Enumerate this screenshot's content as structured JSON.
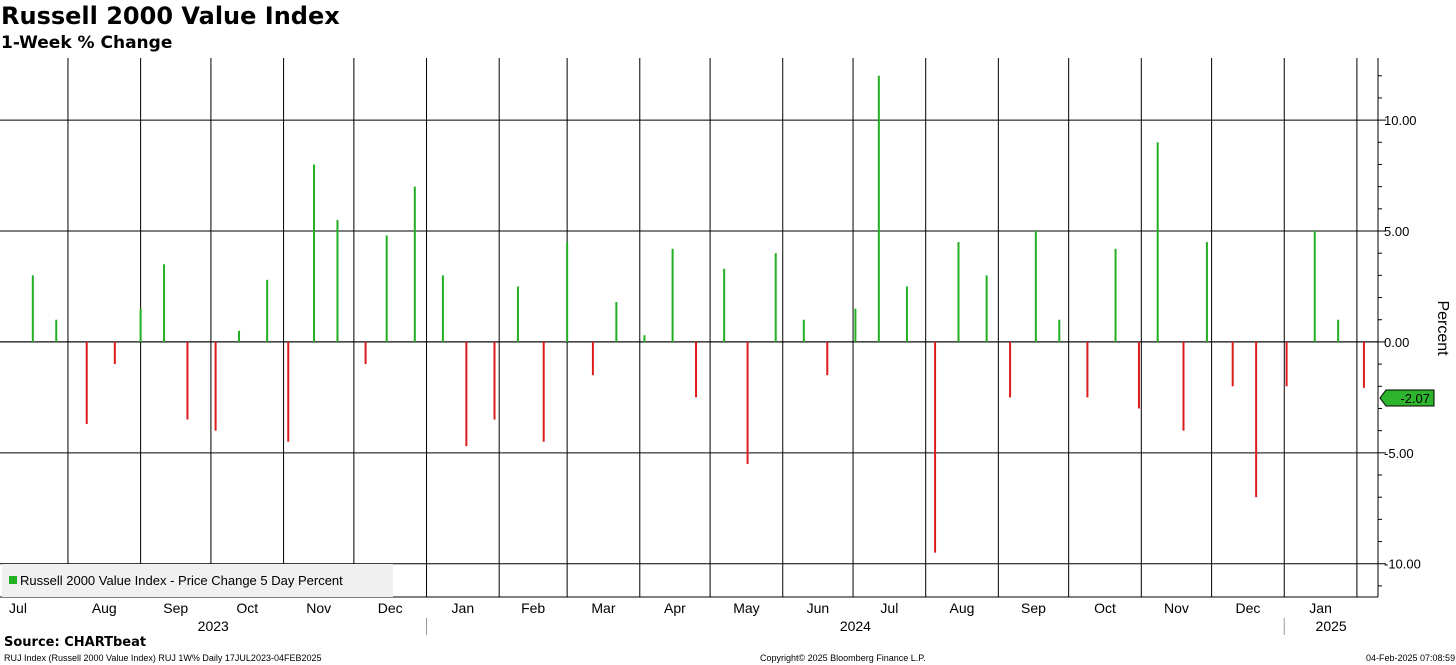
{
  "header": {
    "title": "Russell 2000 Value Index",
    "subtitle": "1-Week % Change"
  },
  "footer": {
    "source": "Source: CHARTbeat",
    "left": "RUJ Index (Russell 2000 Value Index) RUJ 1W% Daily 17JUL2023-04FEB2025",
    "center": "Copyright© 2025 Bloomberg Finance L.P.",
    "right": "04-Feb-2025 07:08:59"
  },
  "colors": {
    "positive": "#22b022",
    "negative": "#dd1c1c",
    "grid": "#000000",
    "legend_bg": "#f0f0f0",
    "last_value_bg": "#2db52d"
  },
  "chart_data": {
    "type": "bar",
    "ylabel": "Percent",
    "ylim": [
      -11.5,
      12.8
    ],
    "yticks": [
      10,
      5,
      0,
      -5,
      -10
    ],
    "ytick_labels": [
      "10.00",
      "5.00",
      "0.00",
      "-5.00",
      "-10.00"
    ],
    "legend": "Russell 2000 Value Index - Price Change 5 Day Percent",
    "legend_position": "bottom-left",
    "last_value_label": "-2.07",
    "last_value": -2.07,
    "month_labels": [
      "Jul",
      "Aug",
      "Sep",
      "Oct",
      "Nov",
      "Dec",
      "Jan",
      "Feb",
      "Mar",
      "Apr",
      "May",
      "Jun",
      "Jul",
      "Aug",
      "Sep",
      "Oct",
      "Nov",
      "Dec",
      "Jan"
    ],
    "year_labels": [
      "2023",
      "2024",
      "2025"
    ],
    "x": [
      "2023-07-17",
      "2023-07-27",
      "2023-08-09",
      "2023-08-21",
      "2023-09-01",
      "2023-09-11",
      "2023-09-21",
      "2023-10-03",
      "2023-10-13",
      "2023-10-25",
      "2023-11-03",
      "2023-11-14",
      "2023-11-24",
      "2023-12-06",
      "2023-12-15",
      "2023-12-27",
      "2024-01-08",
      "2024-01-18",
      "2024-01-30",
      "2024-02-09",
      "2024-02-20",
      "2024-03-01",
      "2024-03-12",
      "2024-03-22",
      "2024-04-03",
      "2024-04-15",
      "2024-04-25",
      "2024-05-07",
      "2024-05-17",
      "2024-05-29",
      "2024-06-10",
      "2024-06-20",
      "2024-07-02",
      "2024-07-12",
      "2024-07-24",
      "2024-08-05",
      "2024-08-15",
      "2024-08-27",
      "2024-09-06",
      "2024-09-17",
      "2024-09-27",
      "2024-10-09",
      "2024-10-21",
      "2024-10-31",
      "2024-11-08",
      "2024-11-19",
      "2024-11-29",
      "2024-12-10",
      "2024-12-20",
      "2025-01-02",
      "2025-01-14",
      "2025-01-24",
      "2025-02-04"
    ],
    "values": [
      3.0,
      1.0,
      -3.7,
      -1.0,
      1.5,
      3.5,
      -3.5,
      -4.0,
      0.5,
      2.8,
      -4.5,
      8.0,
      5.5,
      -1.0,
      4.8,
      7.0,
      3.0,
      -4.7,
      -3.5,
      2.5,
      -4.5,
      4.5,
      -1.5,
      1.8,
      0.3,
      4.2,
      -2.5,
      3.3,
      -5.5,
      4.0,
      1.0,
      -1.5,
      1.5,
      12.0,
      2.5,
      -9.5,
      4.5,
      3.0,
      -2.5,
      5.0,
      1.0,
      -2.5,
      4.2,
      -3.0,
      9.0,
      -4.0,
      4.5,
      -2.0,
      -7.0,
      -2.0,
      5.0,
      1.0,
      -2.07
    ]
  }
}
